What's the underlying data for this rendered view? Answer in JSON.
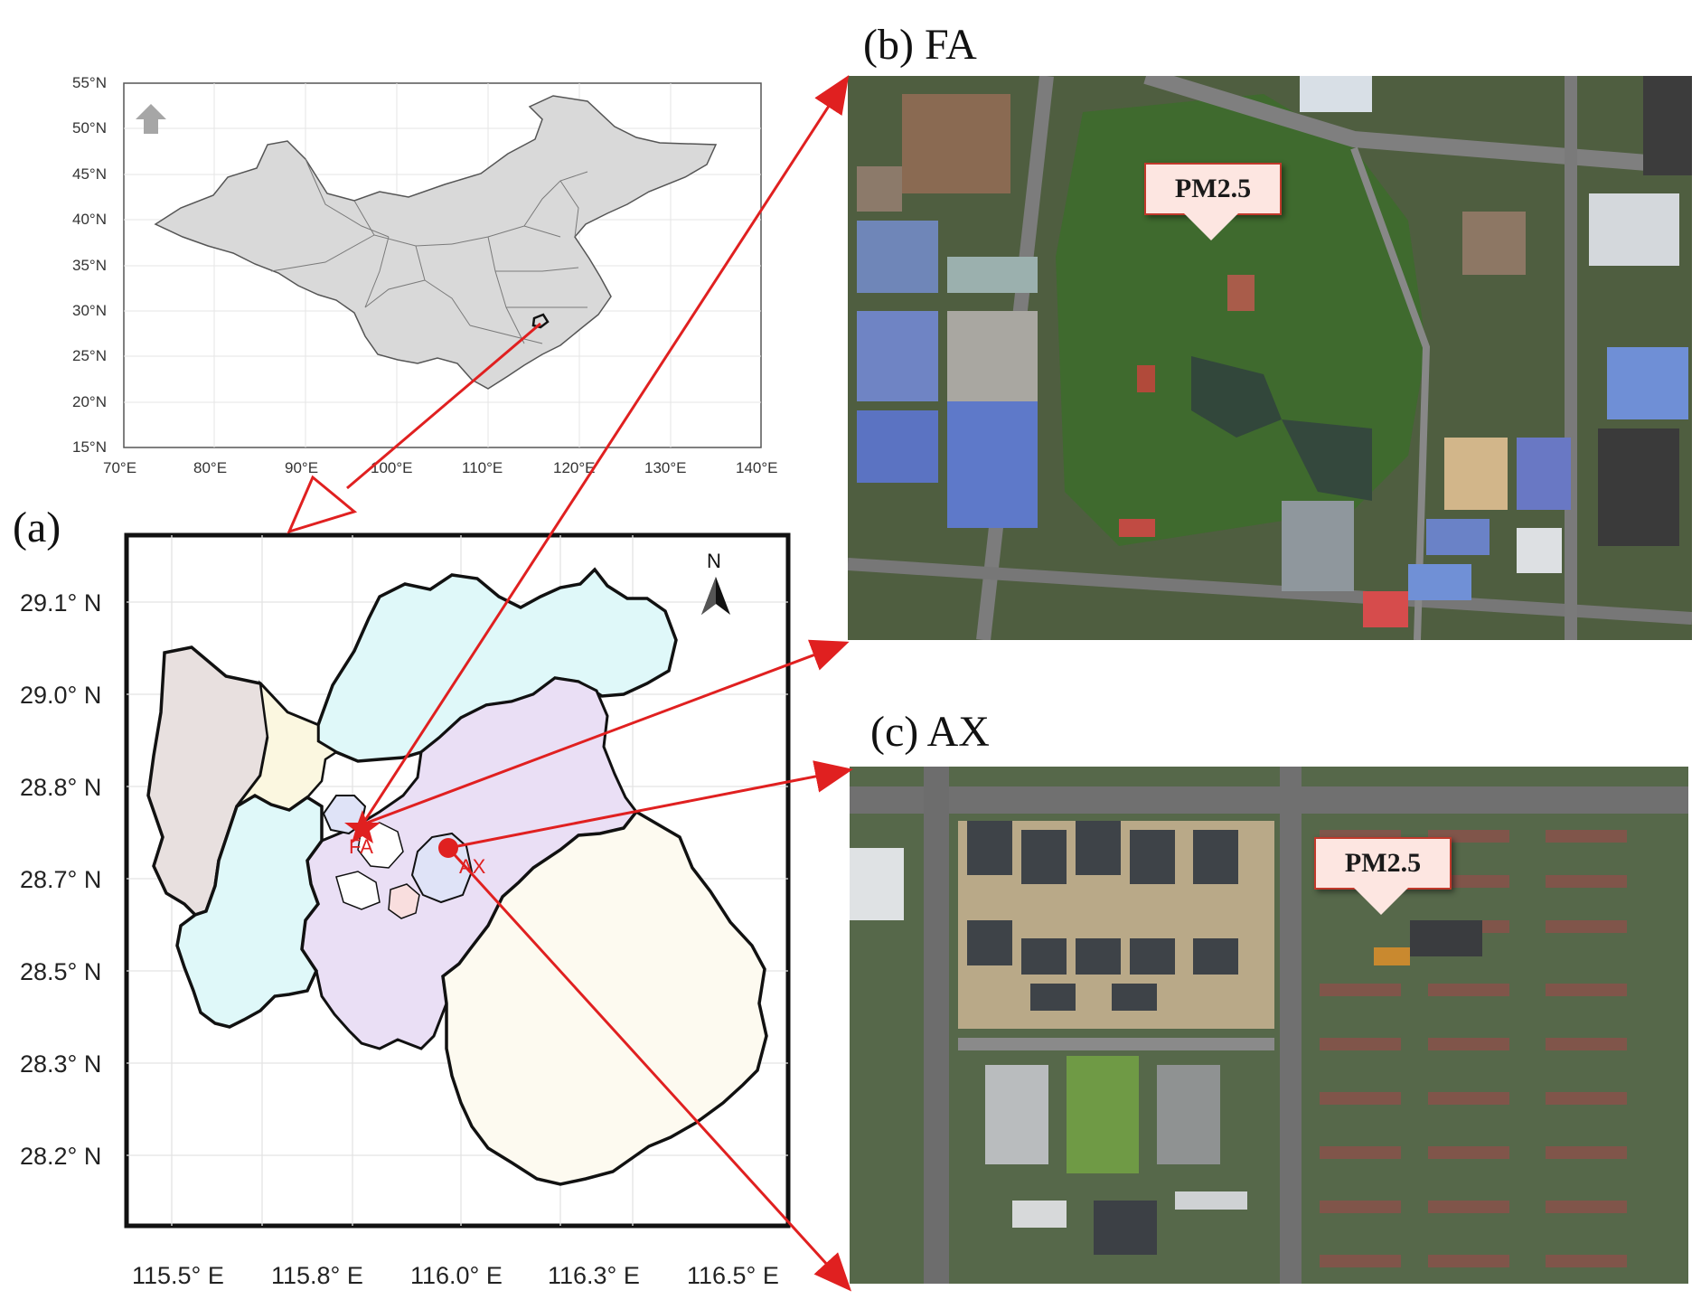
{
  "colors": {
    "accent_red": "#e02020",
    "china_fill": "#d9d9d9",
    "region_fills": [
      "#e8e0df",
      "#fbf7e0",
      "#dff8f9",
      "#eadff5",
      "#fdfaf0",
      "#dfe3f7",
      "#f9dede"
    ]
  },
  "panels": {
    "a": {
      "label": "(a)"
    },
    "b": {
      "label": "(b) FA",
      "marker_text": "PM2.5"
    },
    "c": {
      "label": "(c) AX",
      "marker_text": "PM2.5"
    }
  },
  "china_map": {
    "lat_ticks": [
      "55°N",
      "50°N",
      "45°N",
      "40°N",
      "35°N",
      "30°N",
      "25°N",
      "20°N",
      "15°N"
    ],
    "lon_ticks": [
      "70°E",
      "80°E",
      "90°E",
      "100°E",
      "110°E",
      "120°E",
      "130°E",
      "140°E"
    ],
    "north_icon": "north-arrow-icon"
  },
  "regional_map": {
    "lat_ticks": [
      "29.1° N",
      "29.0° N",
      "28.8° N",
      "28.7° N",
      "28.5° N",
      "28.3° N",
      "28.2° N"
    ],
    "lon_ticks": [
      "115.5° E",
      "115.8° E",
      "116.0° E",
      "116.3° E",
      "116.5° E"
    ],
    "north_label": "N",
    "sites": [
      {
        "name": "FA",
        "marker": "star"
      },
      {
        "name": "AX",
        "marker": "circle"
      }
    ]
  }
}
